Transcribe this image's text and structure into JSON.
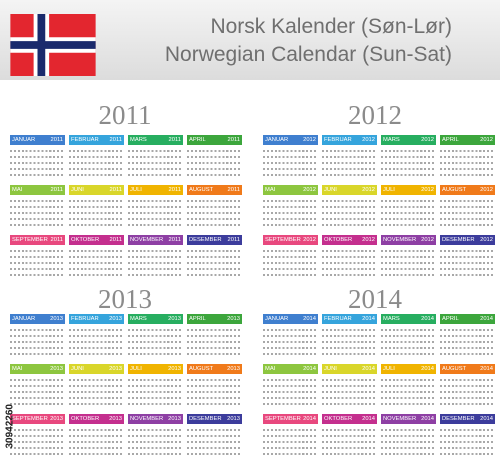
{
  "title_norwegian": "Norsk Kalender (Søn-Lør)",
  "title_english": "Norwegian Calendar (Sun-Sat)",
  "watermark_id": "30942260",
  "flag": {
    "red": "#e3262f",
    "cross_white": "#ffffff",
    "cross_blue": "#1a2a6c"
  },
  "month_names": [
    "JANUAR",
    "FEBRUAR",
    "MARS",
    "APRIL",
    "MAI",
    "JUNI",
    "JULI",
    "AUGUST",
    "SEPTEMBER",
    "OKTOBER",
    "NOVEMBER",
    "DESEMBER"
  ],
  "month_colors": [
    "#3f7fcf",
    "#35a4dc",
    "#27ae60",
    "#3ca63c",
    "#8dc63f",
    "#d9d62a",
    "#f0b400",
    "#f07a1a",
    "#e8487e",
    "#c42f8e",
    "#8e3fa4",
    "#3c3c9c"
  ],
  "years": [
    {
      "year": "2011"
    },
    {
      "year": "2012"
    },
    {
      "year": "2013"
    },
    {
      "year": "2014"
    }
  ]
}
